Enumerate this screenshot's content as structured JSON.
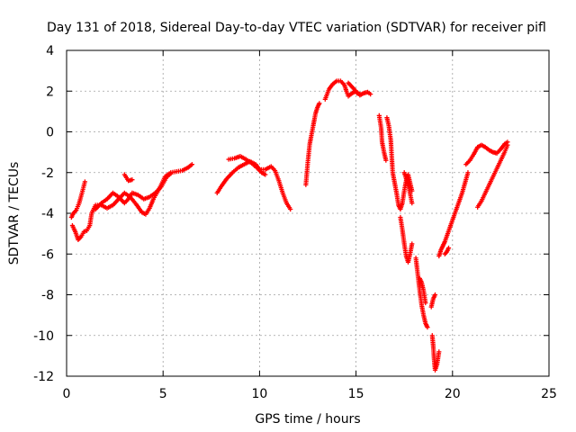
{
  "chart_data": {
    "type": "scatter",
    "title": "Day 131 of 2018, Sidereal Day-to-day VTEC variation (SDTVAR) for receiver pifl",
    "xlabel": "GPS time / hours",
    "ylabel": "SDTVAR / TECUs",
    "xlim": [
      0,
      25
    ],
    "ylim": [
      -12,
      4
    ],
    "xticks": [
      0,
      5,
      10,
      15,
      20,
      25
    ],
    "yticks": [
      -12,
      -10,
      -8,
      -6,
      -4,
      -2,
      0,
      2,
      4
    ],
    "grid": true,
    "marker": "plus",
    "color": "#ff0000",
    "series": [
      {
        "segments": [
          [
            [
              0.25,
              -4.2
            ],
            [
              0.35,
              -4.0
            ],
            [
              0.5,
              -3.85
            ],
            [
              0.65,
              -3.5
            ],
            [
              0.8,
              -3.0
            ],
            [
              0.95,
              -2.45
            ]
          ],
          [
            [
              0.3,
              -4.6
            ],
            [
              0.45,
              -4.9
            ],
            [
              0.6,
              -5.3
            ],
            [
              0.75,
              -5.15
            ],
            [
              0.9,
              -4.9
            ],
            [
              1.05,
              -4.85
            ],
            [
              1.2,
              -4.6
            ],
            [
              1.3,
              -4.0
            ],
            [
              1.5,
              -3.6
            ],
            [
              1.8,
              -3.6
            ],
            [
              2.1,
              -3.75
            ],
            [
              2.4,
              -3.6
            ],
            [
              2.7,
              -3.3
            ],
            [
              3.0,
              -3.0
            ],
            [
              3.3,
              -3.2
            ],
            [
              3.6,
              -3.55
            ],
            [
              3.9,
              -3.95
            ],
            [
              4.1,
              -4.05
            ],
            [
              4.3,
              -3.75
            ],
            [
              4.5,
              -3.3
            ],
            [
              4.8,
              -2.8
            ],
            [
              5.1,
              -2.2
            ],
            [
              5.4,
              -2.0
            ],
            [
              5.7,
              -1.95
            ],
            [
              6.0,
              -1.9
            ],
            [
              6.3,
              -1.75
            ],
            [
              6.5,
              -1.6
            ]
          ],
          [
            [
              1.5,
              -3.8
            ],
            [
              1.8,
              -3.5
            ],
            [
              2.1,
              -3.3
            ],
            [
              2.4,
              -3.0
            ],
            [
              2.7,
              -3.2
            ],
            [
              3.0,
              -3.5
            ],
            [
              3.2,
              -3.3
            ],
            [
              3.4,
              -3.0
            ],
            [
              3.7,
              -3.1
            ],
            [
              4.0,
              -3.3
            ],
            [
              4.3,
              -3.2
            ],
            [
              4.6,
              -3.0
            ],
            [
              4.9,
              -2.7
            ],
            [
              5.2,
              -2.2
            ],
            [
              5.4,
              -2.05
            ]
          ],
          [
            [
              3.0,
              -2.1
            ],
            [
              3.2,
              -2.4
            ],
            [
              3.4,
              -2.35
            ]
          ],
          [
            [
              7.8,
              -3.0
            ],
            [
              8.0,
              -2.7
            ],
            [
              8.3,
              -2.3
            ],
            [
              8.6,
              -2.0
            ],
            [
              8.9,
              -1.75
            ],
            [
              9.2,
              -1.6
            ],
            [
              9.5,
              -1.45
            ],
            [
              9.8,
              -1.6
            ],
            [
              10.0,
              -1.85
            ],
            [
              10.3,
              -1.85
            ],
            [
              10.6,
              -1.7
            ],
            [
              10.8,
              -1.9
            ],
            [
              11.0,
              -2.4
            ],
            [
              11.2,
              -3.0
            ],
            [
              11.4,
              -3.5
            ],
            [
              11.6,
              -3.8
            ]
          ],
          [
            [
              8.4,
              -1.35
            ],
            [
              8.7,
              -1.3
            ],
            [
              9.0,
              -1.2
            ],
            [
              9.3,
              -1.35
            ],
            [
              9.6,
              -1.55
            ],
            [
              9.9,
              -1.8
            ],
            [
              10.1,
              -2.0
            ],
            [
              10.3,
              -2.1
            ]
          ],
          [
            [
              12.4,
              -2.6
            ],
            [
              12.5,
              -1.5
            ],
            [
              12.6,
              -0.6
            ],
            [
              12.7,
              -0.1
            ],
            [
              12.8,
              0.4
            ],
            [
              12.9,
              0.9
            ],
            [
              13.0,
              1.2
            ],
            [
              13.1,
              1.4
            ]
          ],
          [
            [
              13.4,
              1.6
            ],
            [
              13.6,
              2.1
            ],
            [
              13.8,
              2.35
            ],
            [
              14.0,
              2.5
            ],
            [
              14.2,
              2.5
            ],
            [
              14.4,
              2.3
            ],
            [
              14.5,
              2.0
            ],
            [
              14.6,
              1.75
            ],
            [
              14.8,
              1.9
            ],
            [
              15.0,
              2.0
            ],
            [
              15.2,
              1.8
            ],
            [
              15.4,
              1.9
            ],
            [
              15.6,
              1.95
            ],
            [
              15.75,
              1.85
            ]
          ],
          [
            [
              14.6,
              2.4
            ],
            [
              14.75,
              2.25
            ],
            [
              14.9,
              2.1
            ],
            [
              15.05,
              1.9
            ],
            [
              15.2,
              1.85
            ]
          ],
          [
            [
              16.2,
              0.8
            ],
            [
              16.3,
              0.2
            ],
            [
              16.35,
              -0.5
            ],
            [
              16.45,
              -1.0
            ],
            [
              16.55,
              -1.4
            ]
          ],
          [
            [
              16.6,
              0.7
            ],
            [
              16.7,
              0.3
            ],
            [
              16.8,
              -0.4
            ],
            [
              16.85,
              -1.2
            ],
            [
              16.9,
              -2.0
            ],
            [
              17.0,
              -2.5
            ],
            [
              17.1,
              -3.0
            ],
            [
              17.2,
              -3.6
            ],
            [
              17.3,
              -3.8
            ],
            [
              17.4,
              -3.5
            ],
            [
              17.5,
              -2.9
            ],
            [
              17.6,
              -2.4
            ],
            [
              17.7,
              -2.1
            ],
            [
              17.8,
              -2.5
            ],
            [
              17.9,
              -2.9
            ]
          ],
          [
            [
              17.3,
              -4.2
            ],
            [
              17.4,
              -4.8
            ],
            [
              17.5,
              -5.5
            ],
            [
              17.6,
              -6.1
            ],
            [
              17.7,
              -6.4
            ],
            [
              17.8,
              -6.0
            ],
            [
              17.9,
              -5.5
            ]
          ],
          [
            [
              17.5,
              -2.0
            ],
            [
              17.6,
              -2.3
            ],
            [
              17.75,
              -2.8
            ],
            [
              17.9,
              -3.5
            ]
          ],
          [
            [
              18.1,
              -6.2
            ],
            [
              18.2,
              -7.0
            ],
            [
              18.3,
              -7.8
            ],
            [
              18.4,
              -8.5
            ],
            [
              18.5,
              -9.0
            ],
            [
              18.6,
              -9.4
            ],
            [
              18.7,
              -9.6
            ]
          ],
          [
            [
              18.3,
              -7.2
            ],
            [
              18.4,
              -7.4
            ],
            [
              18.5,
              -7.8
            ],
            [
              18.6,
              -8.4
            ]
          ],
          [
            [
              18.9,
              -8.6
            ],
            [
              19.0,
              -8.2
            ],
            [
              19.1,
              -8.0
            ]
          ],
          [
            [
              18.95,
              -10.0
            ],
            [
              19.0,
              -10.5
            ],
            [
              19.05,
              -11.2
            ],
            [
              19.1,
              -11.7
            ],
            [
              19.2,
              -11.4
            ],
            [
              19.3,
              -10.8
            ]
          ],
          [
            [
              19.3,
              -6.1
            ],
            [
              19.4,
              -5.8
            ],
            [
              19.5,
              -5.6
            ],
            [
              19.6,
              -5.4
            ],
            [
              19.75,
              -5.0
            ],
            [
              19.9,
              -4.6
            ],
            [
              20.05,
              -4.2
            ],
            [
              20.2,
              -3.8
            ],
            [
              20.35,
              -3.4
            ],
            [
              20.5,
              -3.0
            ],
            [
              20.65,
              -2.5
            ],
            [
              20.8,
              -2.0
            ]
          ],
          [
            [
              19.6,
              -6.0
            ],
            [
              19.7,
              -5.9
            ],
            [
              19.8,
              -5.7
            ]
          ],
          [
            [
              20.7,
              -1.6
            ],
            [
              20.9,
              -1.4
            ],
            [
              21.1,
              -1.1
            ],
            [
              21.3,
              -0.75
            ],
            [
              21.5,
              -0.65
            ],
            [
              21.7,
              -0.75
            ],
            [
              21.9,
              -0.9
            ],
            [
              22.1,
              -1.0
            ],
            [
              22.3,
              -1.05
            ],
            [
              22.5,
              -0.85
            ],
            [
              22.7,
              -0.6
            ],
            [
              22.85,
              -0.5
            ]
          ],
          [
            [
              21.3,
              -3.7
            ],
            [
              21.5,
              -3.4
            ],
            [
              21.7,
              -3.0
            ],
            [
              21.9,
              -2.6
            ],
            [
              22.1,
              -2.2
            ],
            [
              22.3,
              -1.8
            ],
            [
              22.5,
              -1.4
            ],
            [
              22.7,
              -1.0
            ],
            [
              22.85,
              -0.65
            ]
          ]
        ]
      }
    ]
  }
}
